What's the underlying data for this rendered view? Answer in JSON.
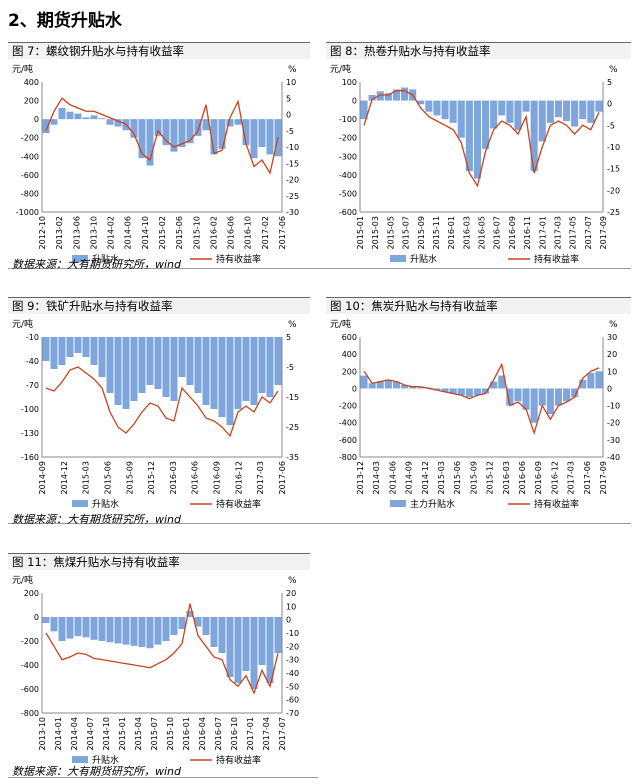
{
  "section_title": "2、期货升贴水",
  "source_text": "数据来源：大有期货研究所，wind",
  "colors": {
    "bar": "#7ea6dc",
    "line": "#c8431f"
  },
  "chart_data": [
    {
      "id": "fig7",
      "type": "bar+line",
      "title": "图 7：螺纹钢升贴水与持有收益率",
      "left_unit": "元/吨",
      "right_unit": "%",
      "left_ticks": [
        400,
        200,
        0,
        -200,
        -400,
        -600,
        -800,
        -1000
      ],
      "right_ticks": [
        10,
        5,
        0,
        -5,
        -10,
        -15,
        -20,
        -25,
        -30
      ],
      "ylim_left": [
        -1000,
        400
      ],
      "ylim_right": [
        -30,
        10
      ],
      "x_labels": [
        "2012-10",
        "2013-02",
        "2013-06",
        "2013-10",
        "2014-02",
        "2014-06",
        "2014-10",
        "2015-02",
        "2015-06",
        "2015-10",
        "2016-02",
        "2016-06",
        "2016-10",
        "2017-02",
        "2017-06"
      ],
      "series": [
        {
          "name": "升贴水",
          "kind": "bar",
          "axis": "left",
          "values": [
            -150,
            -60,
            120,
            80,
            60,
            20,
            40,
            10,
            -60,
            -80,
            -120,
            -200,
            -420,
            -500,
            -180,
            -280,
            -350,
            -300,
            -260,
            -180,
            -120,
            -380,
            -320,
            -80,
            -60,
            -280,
            -420,
            -300,
            -380,
            -400
          ]
        },
        {
          "name": "持有收益率",
          "kind": "line",
          "axis": "right",
          "values": [
            -5,
            1,
            5,
            3,
            2,
            1,
            1,
            0,
            -1,
            -2,
            -3,
            -6,
            -12,
            -14,
            -5,
            -8,
            -10,
            -9,
            -8,
            -5,
            3,
            -12,
            -11,
            -1,
            4,
            -9,
            -16,
            -14,
            -18,
            -7
          ]
        }
      ]
    },
    {
      "id": "fig8",
      "type": "bar+line",
      "title": "图 8：热卷升贴水与持有收益率",
      "left_unit": "元/吨",
      "right_unit": "%",
      "left_ticks": [
        100,
        0,
        -100,
        -200,
        -300,
        -400,
        -500,
        -600
      ],
      "right_ticks": [
        5,
        0,
        -5,
        -10,
        -15,
        -20,
        -25
      ],
      "ylim_left": [
        -600,
        100
      ],
      "ylim_right": [
        -25,
        5
      ],
      "x_labels": [
        "2015-01",
        "2015-03",
        "2015-05",
        "2015-07",
        "2015-09",
        "2015-11",
        "2016-01",
        "2016-03",
        "2016-05",
        "2016-07",
        "2016-09",
        "2016-11",
        "2017-01",
        "2017-03",
        "2017-05",
        "2017-07",
        "2017-09"
      ],
      "series": [
        {
          "name": "升贴水",
          "kind": "bar",
          "axis": "left",
          "values": [
            -100,
            30,
            50,
            40,
            60,
            70,
            60,
            -20,
            -60,
            -80,
            -100,
            -120,
            -200,
            -380,
            -420,
            -260,
            -150,
            -80,
            -120,
            -160,
            -60,
            -380,
            -220,
            -120,
            -90,
            -110,
            -140,
            -100,
            -120,
            -60
          ]
        },
        {
          "name": "持有收益率",
          "kind": "line",
          "axis": "right",
          "values": [
            -5,
            1,
            2,
            2,
            3,
            3,
            2,
            -1,
            -3,
            -4,
            -5,
            -6,
            -9,
            -16,
            -19,
            -11,
            -6,
            -4,
            -5,
            -7,
            -3,
            -16,
            -10,
            -5,
            -4,
            -5,
            -7,
            -5,
            -6,
            -2
          ]
        }
      ]
    },
    {
      "id": "fig9",
      "type": "bar+line",
      "title": "图 9：铁矿升贴水与持有收益率",
      "left_unit": "元/吨",
      "right_unit": "%",
      "left_ticks": [
        -10,
        -40,
        -70,
        -100,
        -130,
        -160
      ],
      "right_ticks": [
        5,
        -5,
        -15,
        -25,
        -35
      ],
      "ylim_left": [
        -160,
        -10
      ],
      "ylim_right": [
        -35,
        5
      ],
      "x_labels": [
        "2014-09",
        "2014-12",
        "2015-03",
        "2015-06",
        "2015-09",
        "2015-12",
        "2016-03",
        "2016-06",
        "2016-09",
        "2016-12",
        "2017-03",
        "2017-06"
      ],
      "series": [
        {
          "name": "升贴水",
          "kind": "bar",
          "axis": "left",
          "values": [
            -40,
            -50,
            -45,
            -35,
            -30,
            -35,
            -45,
            -60,
            -80,
            -95,
            -100,
            -90,
            -80,
            -70,
            -75,
            -85,
            -90,
            -60,
            -70,
            -80,
            -95,
            -100,
            -110,
            -120,
            -100,
            -90,
            -95,
            -80,
            -85,
            -70
          ]
        },
        {
          "name": "持有收益率",
          "kind": "line",
          "axis": "right",
          "values": [
            -12,
            -13,
            -10,
            -6,
            -5,
            -7,
            -9,
            -12,
            -20,
            -25,
            -27,
            -24,
            -20,
            -17,
            -18,
            -22,
            -23,
            -12,
            -15,
            -18,
            -22,
            -23,
            -25,
            -28,
            -20,
            -18,
            -20,
            -15,
            -17,
            -13
          ]
        }
      ]
    },
    {
      "id": "fig10",
      "type": "bar+line",
      "title": "图 10：焦炭升贴水与持有收益率",
      "left_unit": "元/吨",
      "right_unit": "%",
      "left_ticks": [
        600,
        400,
        200,
        0,
        -200,
        -400,
        -600,
        -800
      ],
      "right_ticks": [
        30,
        20,
        10,
        0,
        -10,
        -20,
        -30,
        -40
      ],
      "ylim_left": [
        -800,
        600
      ],
      "ylim_right": [
        -40,
        30
      ],
      "x_labels": [
        "2013-12",
        "2014-03",
        "2014-06",
        "2014-09",
        "2014-12",
        "2015-03",
        "2015-06",
        "2015-09",
        "2015-12",
        "2016-03",
        "2016-06",
        "2016-09",
        "2016-12",
        "2017-03",
        "2017-06",
        "2017-09"
      ],
      "series": [
        {
          "name": "主力升贴水",
          "kind": "bar",
          "axis": "left",
          "values": [
            150,
            60,
            80,
            100,
            80,
            40,
            30,
            20,
            10,
            -20,
            -40,
            -60,
            -80,
            -100,
            -80,
            -60,
            80,
            150,
            -200,
            -150,
            -250,
            -400,
            -200,
            -300,
            -200,
            -150,
            -100,
            100,
            180,
            200
          ]
        },
        {
          "name": "持有收益率",
          "kind": "line",
          "axis": "right",
          "values": [
            10,
            3,
            4,
            5,
            4,
            2,
            1,
            1,
            0,
            -1,
            -2,
            -3,
            -4,
            -6,
            -4,
            -3,
            5,
            14,
            -10,
            -8,
            -12,
            -26,
            -10,
            -18,
            -10,
            -8,
            -5,
            6,
            10,
            12
          ]
        }
      ]
    },
    {
      "id": "fig11",
      "type": "bar+line",
      "title": "图 11：焦煤升贴水与持有收益率",
      "left_unit": "元/吨",
      "right_unit": "%",
      "left_ticks": [
        200,
        0,
        -200,
        -400,
        -600,
        -800
      ],
      "right_ticks": [
        20,
        10,
        0,
        -10,
        -20,
        -30,
        -40,
        -50,
        -60,
        -70
      ],
      "ylim_left": [
        -800,
        200
      ],
      "ylim_right": [
        -70,
        20
      ],
      "x_labels": [
        "2013-10",
        "2014-01",
        "2014-04",
        "2014-07",
        "2014-10",
        "2015-01",
        "2015-04",
        "2015-07",
        "2015-10",
        "2016-01",
        "2016-04",
        "2016-07",
        "2016-10",
        "2017-01",
        "2017-04",
        "2017-07"
      ],
      "series": [
        {
          "name": "升贴水",
          "kind": "bar",
          "axis": "left",
          "values": [
            -50,
            -120,
            -200,
            -180,
            -160,
            -170,
            -190,
            -200,
            -210,
            -220,
            -230,
            -240,
            -250,
            -260,
            -230,
            -200,
            -150,
            -100,
            50,
            -80,
            -150,
            -250,
            -300,
            -500,
            -550,
            -450,
            -600,
            -400,
            -550,
            -300
          ]
        },
        {
          "name": "持有收益率",
          "kind": "line",
          "axis": "right",
          "values": [
            -10,
            -20,
            -30,
            -28,
            -25,
            -26,
            -29,
            -30,
            -31,
            -32,
            -33,
            -34,
            -35,
            -36,
            -33,
            -30,
            -25,
            -18,
            12,
            -12,
            -20,
            -28,
            -30,
            -45,
            -50,
            -42,
            -55,
            -38,
            -50,
            -25
          ]
        }
      ]
    }
  ]
}
